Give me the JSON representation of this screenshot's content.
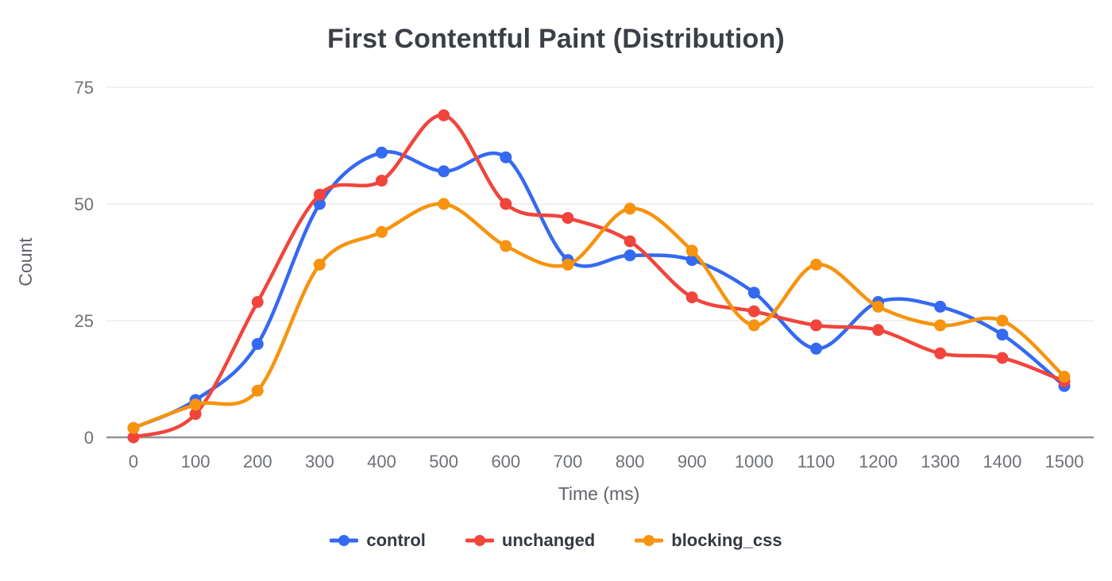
{
  "chart_data": {
    "type": "line",
    "title": "First Contentful Paint (Distribution)",
    "xlabel": "Time (ms)",
    "ylabel": "Count",
    "x": [
      0,
      100,
      200,
      300,
      400,
      500,
      600,
      700,
      800,
      900,
      1000,
      1100,
      1200,
      1300,
      1400,
      1500
    ],
    "series": [
      {
        "name": "control",
        "color": "#3569F1",
        "values": [
          2,
          8,
          20,
          50,
          61,
          57,
          60,
          38,
          39,
          38,
          31,
          19,
          29,
          28,
          22,
          11
        ]
      },
      {
        "name": "unchanged",
        "color": "#F1453C",
        "values": [
          0,
          5,
          29,
          52,
          55,
          69,
          50,
          47,
          42,
          30,
          27,
          24,
          23,
          18,
          17,
          12
        ]
      },
      {
        "name": "blocking_css",
        "color": "#F7930E",
        "values": [
          2,
          7,
          10,
          37,
          44,
          50,
          41,
          37,
          49,
          40,
          24,
          37,
          28,
          24,
          25,
          13
        ]
      }
    ],
    "ylim": [
      0,
      75
    ],
    "yticks": [
      0,
      25,
      50,
      75
    ],
    "grid": "horizontal-only",
    "legend_position": "bottom",
    "style_colors": {
      "gridline": "#ECECEC",
      "zero_axis": "#919498",
      "tick_text": "#6d7176",
      "axis_title_text": "#606469",
      "title_text": "#3b3f46"
    }
  }
}
